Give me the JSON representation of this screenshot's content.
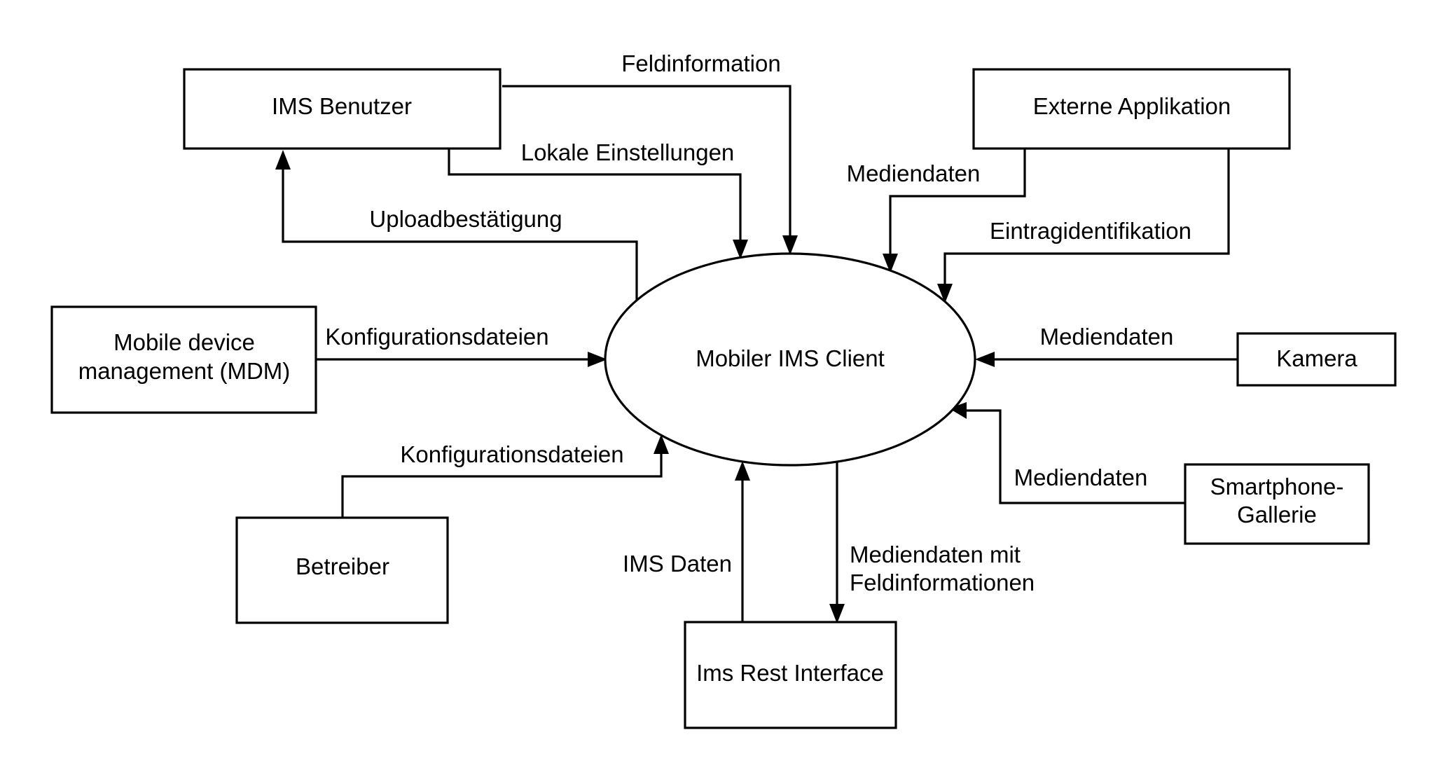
{
  "colors": {
    "stroke": "#000000",
    "background": "#ffffff"
  },
  "nodes": {
    "ims_benutzer": "IMS Benutzer",
    "externe_applikation": "Externe Applikation",
    "mdm_line1": "Mobile device",
    "mdm_line2": "management (MDM)",
    "client": "Mobiler IMS Client",
    "kamera": "Kamera",
    "betreiber": "Betreiber",
    "smartphone_line1": "Smartphone-",
    "smartphone_line2": "Gallerie",
    "rest_interface": "Ims Rest Interface"
  },
  "edges": {
    "feldinformation": "Feldinformation",
    "lokale_einstellungen": "Lokale Einstellungen",
    "uploadbestaetigung": "Uploadbestätigung",
    "mediendaten_extern": "Mediendaten",
    "eintragidentifikation": "Eintragidentifikation",
    "konfig_mdm": "Konfigurationsdateien",
    "mediendaten_kamera": "Mediendaten",
    "konfig_betreiber": "Konfigurationsdateien",
    "mediendaten_gallerie": "Mediendaten",
    "ims_daten": "IMS Daten",
    "mediendaten_rest_line1": "Mediendaten mit",
    "mediendaten_rest_line2": "Feldinformationen"
  }
}
